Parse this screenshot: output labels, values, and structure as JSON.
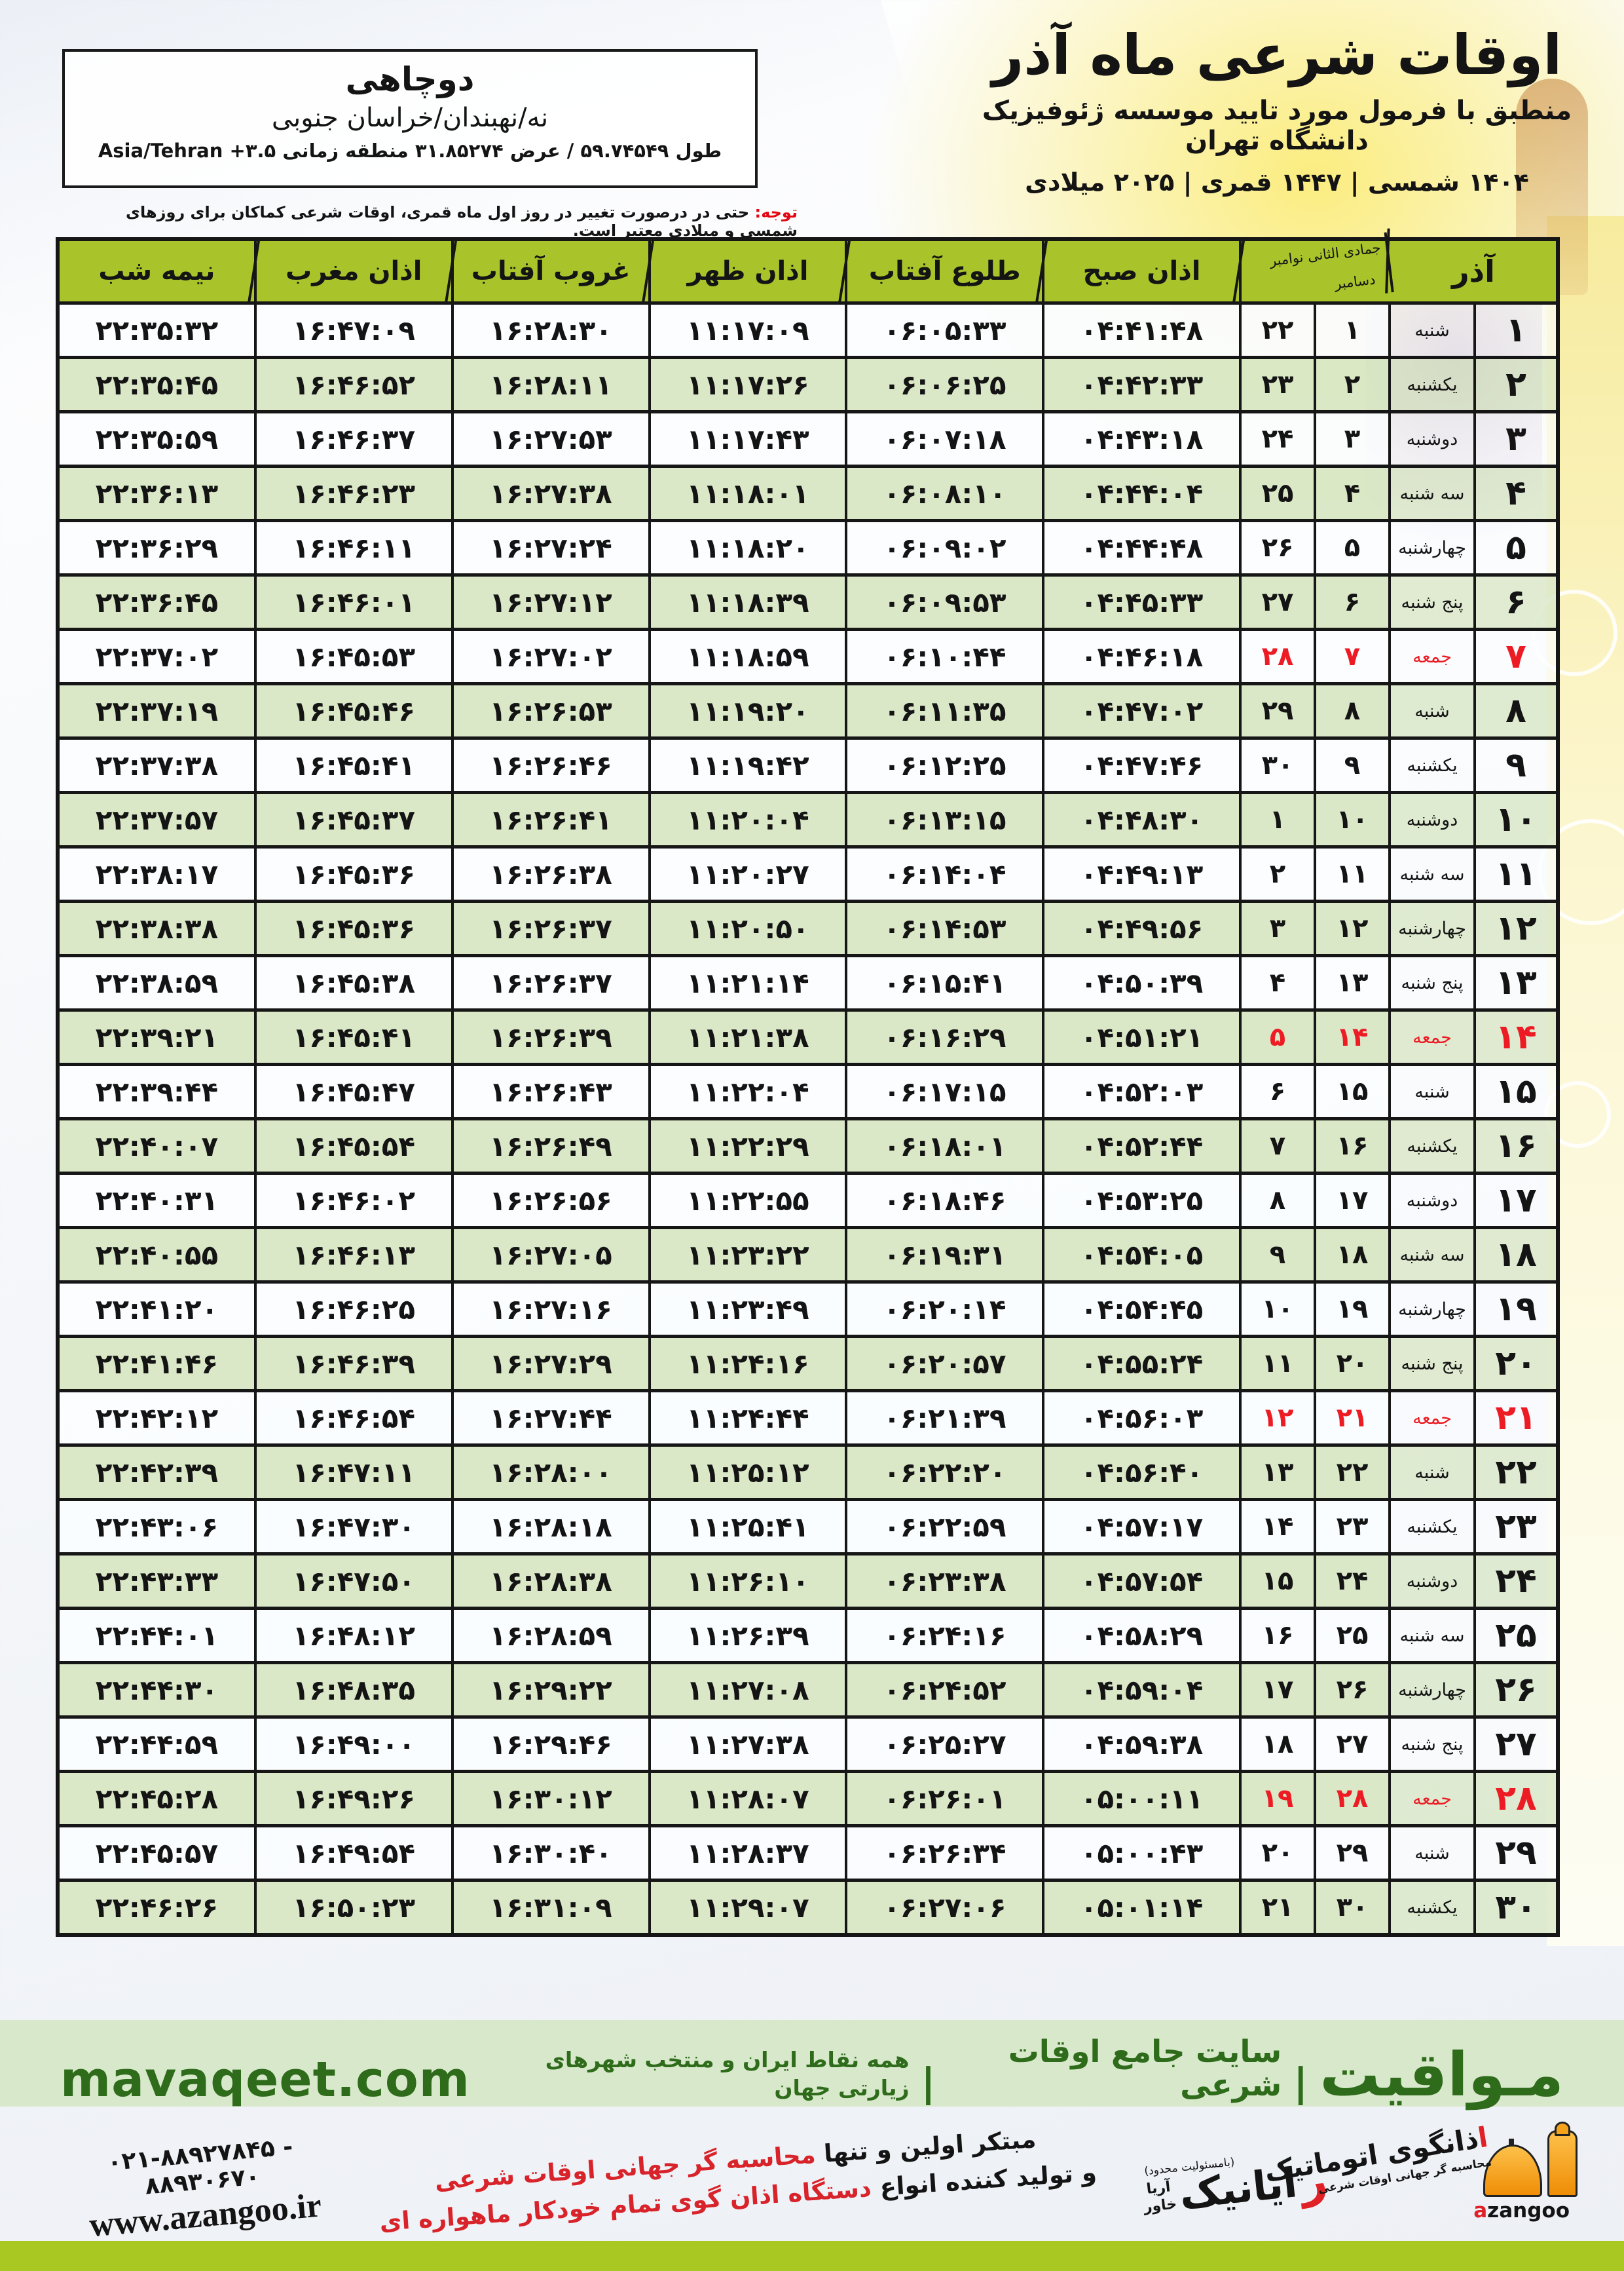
{
  "header": {
    "title": "اوقات شرعی ماه آذر",
    "subtitle": "منطبق با فرمول مورد تایید موسسه ژئوفیزیک دانشگاه تهران",
    "calendars_line": "۱۴۰۴ شمسی | ۱۴۴۷ قمری | ۲۰۲۵ میلادی"
  },
  "location_box": {
    "name": "دوچاهی",
    "region": "نه/نهبندان/خراسان جنوبی",
    "geo_prefix": "طول ۵۹.۷۴۵۴۹ / عرض ۳۱.۸۵۲۷۴ منطقه زمانی",
    "tz_offset": "+۳.۵",
    "tz_name": "Asia/Tehran"
  },
  "notice": {
    "label": "توجه:",
    "text": " حتی در درصورت تغییر در روز اول ماه قمری، اوقات شرعی کماکان برای روزهای شمسی و میلادی معتبر است."
  },
  "table": {
    "headers": {
      "azar": "آذر",
      "hijri_greg_line1": "جمادی الثانی نوامبر",
      "hijri_greg_line2": "دسامبر",
      "fajr": "اذان صبح",
      "sunrise": "طلوع آفتاب",
      "dhuhr": "اذان ظهر",
      "sunset": "غروب آفتاب",
      "maghrib": "اذان مغرب",
      "midnight": "نیمه شب"
    },
    "rows": [
      {
        "azar": "۱",
        "day": "شنبه",
        "hijri": "۱",
        "greg": "۲۲",
        "fajr": "۰۴:۴۱:۴۸",
        "sunrise": "۰۶:۰۵:۳۳",
        "dhuhr": "۱۱:۱۷:۰۹",
        "sunset": "۱۶:۲۸:۳۰",
        "maghrib": "۱۶:۴۷:۰۹",
        "midnight": "۲۲:۳۵:۳۲",
        "friday": false
      },
      {
        "azar": "۲",
        "day": "یکشنبه",
        "hijri": "۲",
        "greg": "۲۳",
        "fajr": "۰۴:۴۲:۳۳",
        "sunrise": "۰۶:۰۶:۲۵",
        "dhuhr": "۱۱:۱۷:۲۶",
        "sunset": "۱۶:۲۸:۱۱",
        "maghrib": "۱۶:۴۶:۵۲",
        "midnight": "۲۲:۳۵:۴۵",
        "friday": false
      },
      {
        "azar": "۳",
        "day": "دوشنبه",
        "hijri": "۳",
        "greg": "۲۴",
        "fajr": "۰۴:۴۳:۱۸",
        "sunrise": "۰۶:۰۷:۱۸",
        "dhuhr": "۱۱:۱۷:۴۳",
        "sunset": "۱۶:۲۷:۵۳",
        "maghrib": "۱۶:۴۶:۳۷",
        "midnight": "۲۲:۳۵:۵۹",
        "friday": false
      },
      {
        "azar": "۴",
        "day": "سه شنبه",
        "hijri": "۴",
        "greg": "۲۵",
        "fajr": "۰۴:۴۴:۰۴",
        "sunrise": "۰۶:۰۸:۱۰",
        "dhuhr": "۱۱:۱۸:۰۱",
        "sunset": "۱۶:۲۷:۳۸",
        "maghrib": "۱۶:۴۶:۲۳",
        "midnight": "۲۲:۳۶:۱۳",
        "friday": false
      },
      {
        "azar": "۵",
        "day": "چهارشنبه",
        "hijri": "۵",
        "greg": "۲۶",
        "fajr": "۰۴:۴۴:۴۸",
        "sunrise": "۰۶:۰۹:۰۲",
        "dhuhr": "۱۱:۱۸:۲۰",
        "sunset": "۱۶:۲۷:۲۴",
        "maghrib": "۱۶:۴۶:۱۱",
        "midnight": "۲۲:۳۶:۲۹",
        "friday": false
      },
      {
        "azar": "۶",
        "day": "پنج شنبه",
        "hijri": "۶",
        "greg": "۲۷",
        "fajr": "۰۴:۴۵:۳۳",
        "sunrise": "۰۶:۰۹:۵۳",
        "dhuhr": "۱۱:۱۸:۳۹",
        "sunset": "۱۶:۲۷:۱۲",
        "maghrib": "۱۶:۴۶:۰۱",
        "midnight": "۲۲:۳۶:۴۵",
        "friday": false
      },
      {
        "azar": "۷",
        "day": "جمعه",
        "hijri": "۷",
        "greg": "۲۸",
        "fajr": "۰۴:۴۶:۱۸",
        "sunrise": "۰۶:۱۰:۴۴",
        "dhuhr": "۱۱:۱۸:۵۹",
        "sunset": "۱۶:۲۷:۰۲",
        "maghrib": "۱۶:۴۵:۵۳",
        "midnight": "۲۲:۳۷:۰۲",
        "friday": true
      },
      {
        "azar": "۸",
        "day": "شنبه",
        "hijri": "۸",
        "greg": "۲۹",
        "fajr": "۰۴:۴۷:۰۲",
        "sunrise": "۰۶:۱۱:۳۵",
        "dhuhr": "۱۱:۱۹:۲۰",
        "sunset": "۱۶:۲۶:۵۳",
        "maghrib": "۱۶:۴۵:۴۶",
        "midnight": "۲۲:۳۷:۱۹",
        "friday": false
      },
      {
        "azar": "۹",
        "day": "یکشنبه",
        "hijri": "۹",
        "greg": "۳۰",
        "fajr": "۰۴:۴۷:۴۶",
        "sunrise": "۰۶:۱۲:۲۵",
        "dhuhr": "۱۱:۱۹:۴۲",
        "sunset": "۱۶:۲۶:۴۶",
        "maghrib": "۱۶:۴۵:۴۱",
        "midnight": "۲۲:۳۷:۳۸",
        "friday": false
      },
      {
        "azar": "۱۰",
        "day": "دوشنبه",
        "hijri": "۱۰",
        "greg": "۱",
        "fajr": "۰۴:۴۸:۳۰",
        "sunrise": "۰۶:۱۳:۱۵",
        "dhuhr": "۱۱:۲۰:۰۴",
        "sunset": "۱۶:۲۶:۴۱",
        "maghrib": "۱۶:۴۵:۳۷",
        "midnight": "۲۲:۳۷:۵۷",
        "friday": false
      },
      {
        "azar": "۱۱",
        "day": "سه شنبه",
        "hijri": "۱۱",
        "greg": "۲",
        "fajr": "۰۴:۴۹:۱۳",
        "sunrise": "۰۶:۱۴:۰۴",
        "dhuhr": "۱۱:۲۰:۲۷",
        "sunset": "۱۶:۲۶:۳۸",
        "maghrib": "۱۶:۴۵:۳۶",
        "midnight": "۲۲:۳۸:۱۷",
        "friday": false
      },
      {
        "azar": "۱۲",
        "day": "چهارشنبه",
        "hijri": "۱۲",
        "greg": "۳",
        "fajr": "۰۴:۴۹:۵۶",
        "sunrise": "۰۶:۱۴:۵۳",
        "dhuhr": "۱۱:۲۰:۵۰",
        "sunset": "۱۶:۲۶:۳۷",
        "maghrib": "۱۶:۴۵:۳۶",
        "midnight": "۲۲:۳۸:۳۸",
        "friday": false
      },
      {
        "azar": "۱۳",
        "day": "پنج شنبه",
        "hijri": "۱۳",
        "greg": "۴",
        "fajr": "۰۴:۵۰:۳۹",
        "sunrise": "۰۶:۱۵:۴۱",
        "dhuhr": "۱۱:۲۱:۱۴",
        "sunset": "۱۶:۲۶:۳۷",
        "maghrib": "۱۶:۴۵:۳۸",
        "midnight": "۲۲:۳۸:۵۹",
        "friday": false
      },
      {
        "azar": "۱۴",
        "day": "جمعه",
        "hijri": "۱۴",
        "greg": "۵",
        "fajr": "۰۴:۵۱:۲۱",
        "sunrise": "۰۶:۱۶:۲۹",
        "dhuhr": "۱۱:۲۱:۳۸",
        "sunset": "۱۶:۲۶:۳۹",
        "maghrib": "۱۶:۴۵:۴۱",
        "midnight": "۲۲:۳۹:۲۱",
        "friday": true
      },
      {
        "azar": "۱۵",
        "day": "شنبه",
        "hijri": "۱۵",
        "greg": "۶",
        "fajr": "۰۴:۵۲:۰۳",
        "sunrise": "۰۶:۱۷:۱۵",
        "dhuhr": "۱۱:۲۲:۰۴",
        "sunset": "۱۶:۲۶:۴۳",
        "maghrib": "۱۶:۴۵:۴۷",
        "midnight": "۲۲:۳۹:۴۴",
        "friday": false
      },
      {
        "azar": "۱۶",
        "day": "یکشنبه",
        "hijri": "۱۶",
        "greg": "۷",
        "fajr": "۰۴:۵۲:۴۴",
        "sunrise": "۰۶:۱۸:۰۱",
        "dhuhr": "۱۱:۲۲:۲۹",
        "sunset": "۱۶:۲۶:۴۹",
        "maghrib": "۱۶:۴۵:۵۴",
        "midnight": "۲۲:۴۰:۰۷",
        "friday": false
      },
      {
        "azar": "۱۷",
        "day": "دوشنبه",
        "hijri": "۱۷",
        "greg": "۸",
        "fajr": "۰۴:۵۳:۲۵",
        "sunrise": "۰۶:۱۸:۴۶",
        "dhuhr": "۱۱:۲۲:۵۵",
        "sunset": "۱۶:۲۶:۵۶",
        "maghrib": "۱۶:۴۶:۰۲",
        "midnight": "۲۲:۴۰:۳۱",
        "friday": false
      },
      {
        "azar": "۱۸",
        "day": "سه شنبه",
        "hijri": "۱۸",
        "greg": "۹",
        "fajr": "۰۴:۵۴:۰۵",
        "sunrise": "۰۶:۱۹:۳۱",
        "dhuhr": "۱۱:۲۳:۲۲",
        "sunset": "۱۶:۲۷:۰۵",
        "maghrib": "۱۶:۴۶:۱۳",
        "midnight": "۲۲:۴۰:۵۵",
        "friday": false
      },
      {
        "azar": "۱۹",
        "day": "چهارشنبه",
        "hijri": "۱۹",
        "greg": "۱۰",
        "fajr": "۰۴:۵۴:۴۵",
        "sunrise": "۰۶:۲۰:۱۴",
        "dhuhr": "۱۱:۲۳:۴۹",
        "sunset": "۱۶:۲۷:۱۶",
        "maghrib": "۱۶:۴۶:۲۵",
        "midnight": "۲۲:۴۱:۲۰",
        "friday": false
      },
      {
        "azar": "۲۰",
        "day": "پنج شنبه",
        "hijri": "۲۰",
        "greg": "۱۱",
        "fajr": "۰۴:۵۵:۲۴",
        "sunrise": "۰۶:۲۰:۵۷",
        "dhuhr": "۱۱:۲۴:۱۶",
        "sunset": "۱۶:۲۷:۲۹",
        "maghrib": "۱۶:۴۶:۳۹",
        "midnight": "۲۲:۴۱:۴۶",
        "friday": false
      },
      {
        "azar": "۲۱",
        "day": "جمعه",
        "hijri": "۲۱",
        "greg": "۱۲",
        "fajr": "۰۴:۵۶:۰۳",
        "sunrise": "۰۶:۲۱:۳۹",
        "dhuhr": "۱۱:۲۴:۴۴",
        "sunset": "۱۶:۲۷:۴۴",
        "maghrib": "۱۶:۴۶:۵۴",
        "midnight": "۲۲:۴۲:۱۲",
        "friday": true
      },
      {
        "azar": "۲۲",
        "day": "شنبه",
        "hijri": "۲۲",
        "greg": "۱۳",
        "fajr": "۰۴:۵۶:۴۰",
        "sunrise": "۰۶:۲۲:۲۰",
        "dhuhr": "۱۱:۲۵:۱۲",
        "sunset": "۱۶:۲۸:۰۰",
        "maghrib": "۱۶:۴۷:۱۱",
        "midnight": "۲۲:۴۲:۳۹",
        "friday": false
      },
      {
        "azar": "۲۳",
        "day": "یکشنبه",
        "hijri": "۲۳",
        "greg": "۱۴",
        "fajr": "۰۴:۵۷:۱۷",
        "sunrise": "۰۶:۲۲:۵۹",
        "dhuhr": "۱۱:۲۵:۴۱",
        "sunset": "۱۶:۲۸:۱۸",
        "maghrib": "۱۶:۴۷:۳۰",
        "midnight": "۲۲:۴۳:۰۶",
        "friday": false
      },
      {
        "azar": "۲۴",
        "day": "دوشنبه",
        "hijri": "۲۴",
        "greg": "۱۵",
        "fajr": "۰۴:۵۷:۵۴",
        "sunrise": "۰۶:۲۳:۳۸",
        "dhuhr": "۱۱:۲۶:۱۰",
        "sunset": "۱۶:۲۸:۳۸",
        "maghrib": "۱۶:۴۷:۵۰",
        "midnight": "۲۲:۴۳:۳۳",
        "friday": false
      },
      {
        "azar": "۲۵",
        "day": "سه شنبه",
        "hijri": "۲۵",
        "greg": "۱۶",
        "fajr": "۰۴:۵۸:۲۹",
        "sunrise": "۰۶:۲۴:۱۶",
        "dhuhr": "۱۱:۲۶:۳۹",
        "sunset": "۱۶:۲۸:۵۹",
        "maghrib": "۱۶:۴۸:۱۲",
        "midnight": "۲۲:۴۴:۰۱",
        "friday": false
      },
      {
        "azar": "۲۶",
        "day": "چهارشنبه",
        "hijri": "۲۶",
        "greg": "۱۷",
        "fajr": "۰۴:۵۹:۰۴",
        "sunrise": "۰۶:۲۴:۵۲",
        "dhuhr": "۱۱:۲۷:۰۸",
        "sunset": "۱۶:۲۹:۲۲",
        "maghrib": "۱۶:۴۸:۳۵",
        "midnight": "۲۲:۴۴:۳۰",
        "friday": false
      },
      {
        "azar": "۲۷",
        "day": "پنج شنبه",
        "hijri": "۲۷",
        "greg": "۱۸",
        "fajr": "۰۴:۵۹:۳۸",
        "sunrise": "۰۶:۲۵:۲۷",
        "dhuhr": "۱۱:۲۷:۳۸",
        "sunset": "۱۶:۲۹:۴۶",
        "maghrib": "۱۶:۴۹:۰۰",
        "midnight": "۲۲:۴۴:۵۹",
        "friday": false
      },
      {
        "azar": "۲۸",
        "day": "جمعه",
        "hijri": "۲۸",
        "greg": "۱۹",
        "fajr": "۰۵:۰۰:۱۱",
        "sunrise": "۰۶:۲۶:۰۱",
        "dhuhr": "۱۱:۲۸:۰۷",
        "sunset": "۱۶:۳۰:۱۲",
        "maghrib": "۱۶:۴۹:۲۶",
        "midnight": "۲۲:۴۵:۲۸",
        "friday": true
      },
      {
        "azar": "۲۹",
        "day": "شنبه",
        "hijri": "۲۹",
        "greg": "۲۰",
        "fajr": "۰۵:۰۰:۴۳",
        "sunrise": "۰۶:۲۶:۳۴",
        "dhuhr": "۱۱:۲۸:۳۷",
        "sunset": "۱۶:۳۰:۴۰",
        "maghrib": "۱۶:۴۹:۵۴",
        "midnight": "۲۲:۴۵:۵۷",
        "friday": false
      },
      {
        "azar": "۳۰",
        "day": "یکشنبه",
        "hijri": "۳۰",
        "greg": "۲۱",
        "fajr": "۰۵:۰۱:۱۴",
        "sunrise": "۰۶:۲۷:۰۶",
        "dhuhr": "۱۱:۲۹:۰۷",
        "sunset": "۱۶:۳۱:۰۹",
        "maghrib": "۱۶:۵۰:۲۳",
        "midnight": "۲۲:۴۶:۲۶",
        "friday": false
      }
    ]
  },
  "footer": {
    "site_strip": {
      "brand": "مـواقیت",
      "sep1": "|",
      "tagline1": "سایت جامع اوقات شرعی",
      "sep2": "|",
      "tagline2": "همه نقاط ایران و منتخب شهرهای زیارتی جهان",
      "domain": "mavaqeet.com"
    },
    "bottom": {
      "phone": "۰۲۱-۸۸۹۲۷۸۴۵ - ۸۸۹۳۰۶۷۰",
      "website": "www.azangoo.ir",
      "slogan_line1_start": "مبتکر اولین و تنها ",
      "slogan_line1_highlight": "محاسبه گر جهانی اوقات شرعی",
      "slogan_line2_start": "و تولید کننده انواع ",
      "slogan_line2_highlight": "دستگاه اذان گوی تمام خودکار ماهواره ای",
      "rayanik_note": "(بامسئولیت محدود)",
      "rayanik_first_letter": "ر",
      "rayanik_rest": "ایانیک",
      "rayanik_sub_top": "آریا",
      "rayanik_sub_bottom": "خاور",
      "azangoo_fa_first": "ا",
      "azangoo_fa_rest": "ذانگوی اتوماتیک",
      "azangoo_fa_sub": "محاسبه گر جهانی اوقات شرعی",
      "azangoo_latin_first": "a",
      "azangoo_latin_rest": "zangoo"
    }
  },
  "colors": {
    "header_green": "#a9c32a",
    "row_green": "#d7e6c3",
    "friday_red": "#ed1c24",
    "notice_red": "#e30613",
    "strip_bg": "#d7e8cb",
    "strip_text": "#2e6b1a",
    "bottom_bar": "#a9c822"
  }
}
